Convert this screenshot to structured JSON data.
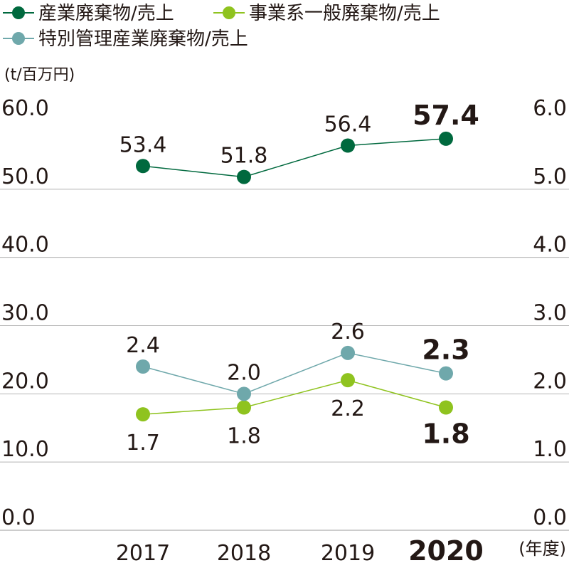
{
  "chart_data": {
    "type": "line",
    "categories": [
      "2017",
      "2018",
      "2019",
      "2020"
    ],
    "highlight_category": "2020",
    "y_unit_label": "(t/百万円)",
    "x_unit_label": "(年度)",
    "left_axis": {
      "ylim": [
        0,
        60
      ],
      "ticks": [
        "0.0",
        "10.0",
        "20.0",
        "30.0",
        "40.0",
        "50.0",
        "60.0"
      ]
    },
    "right_axis": {
      "ylim": [
        0,
        6
      ],
      "ticks": [
        "0.0",
        "1.0",
        "2.0",
        "3.0",
        "4.0",
        "5.0",
        "6.0"
      ]
    },
    "grid": true,
    "legend_position": "top-left",
    "series": [
      {
        "name": "産業廃棄物/売上",
        "axis": "left",
        "color": "#00693e",
        "values": [
          53.4,
          51.8,
          56.4,
          57.4
        ],
        "labels": [
          "53.4",
          "51.8",
          "56.4",
          "57.4"
        ],
        "label_side": "above"
      },
      {
        "name": "事業系一般廃棄物/売上",
        "axis": "right",
        "color": "#8fc31f",
        "values": [
          1.7,
          1.8,
          2.2,
          1.8
        ],
        "labels": [
          "1.7",
          "1.8",
          "2.2",
          "1.8"
        ],
        "label_side": "below"
      },
      {
        "name": "特別管理産業廃棄物/売上",
        "axis": "right",
        "color": "#6fa8ab",
        "values": [
          2.4,
          2.0,
          2.6,
          2.3
        ],
        "labels": [
          "2.4",
          "2.0",
          "2.6",
          "2.3"
        ],
        "label_side": "above"
      }
    ]
  }
}
